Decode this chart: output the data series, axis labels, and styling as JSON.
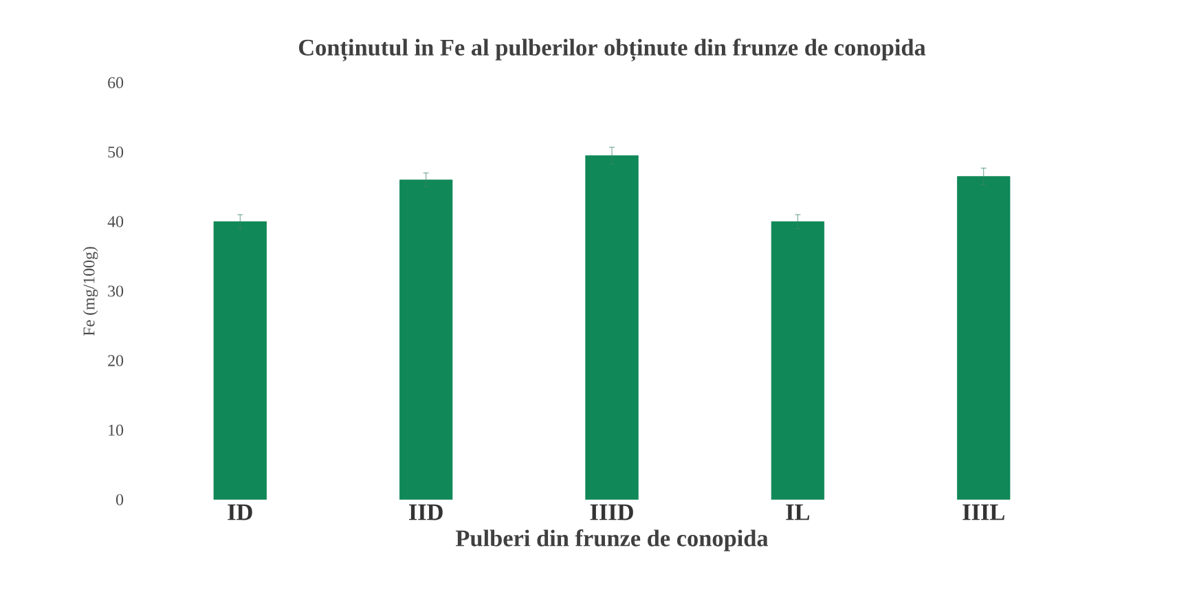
{
  "chart_data": {
    "type": "bar",
    "title": "Conținutul in Fe al pulberilor obținute din frunze de conopida",
    "xlabel": "Pulberi din frunze de conopida",
    "ylabel": "Fe (mg/100g)",
    "categories": [
      "ID",
      "IID",
      "IIID",
      "IL",
      "IIIL"
    ],
    "values": [
      40,
      46,
      49.5,
      40,
      46.5
    ],
    "errors": [
      1,
      1,
      1.2,
      1,
      1.2
    ],
    "color": "#108858",
    "ylim": [
      0,
      60
    ],
    "yticks": [
      0,
      10,
      20,
      30,
      40,
      50,
      60
    ],
    "grid": false
  }
}
